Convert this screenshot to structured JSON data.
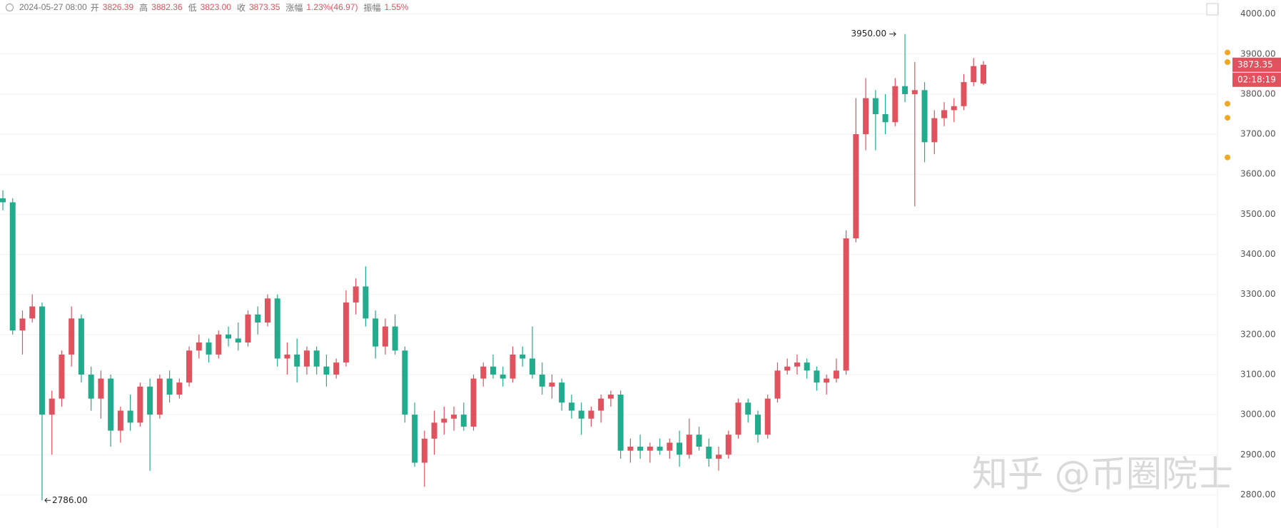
{
  "chart_data": {
    "type": "candlestick",
    "header": {
      "time": "2024-05-27 08:00",
      "items": [
        {
          "label": "开",
          "value": "3826.39"
        },
        {
          "label": "高",
          "value": "3882.36"
        },
        {
          "label": "低",
          "value": "3823.00"
        },
        {
          "label": "收",
          "value": "3873.35"
        },
        {
          "label": "涨幅",
          "value": "1.23%(46.97)"
        },
        {
          "label": "振幅",
          "value": "1.55%"
        }
      ]
    },
    "up_color": "#e0525d",
    "down_color": "#22ab8c",
    "ylim": [
      2717,
      4035
    ],
    "yticks": [
      {
        "value": 2800,
        "label": "2800.00"
      },
      {
        "value": 2900,
        "label": "2900.00"
      },
      {
        "value": 3000,
        "label": "3000.00"
      },
      {
        "value": 3100,
        "label": "3100.00"
      },
      {
        "value": 3200,
        "label": "3200.00"
      },
      {
        "value": 3300,
        "label": "3300.00"
      },
      {
        "value": 3400,
        "label": "3400.00"
      },
      {
        "value": 3500,
        "label": "3500.00"
      },
      {
        "value": 3600,
        "label": "3600.00"
      },
      {
        "value": 3700,
        "label": "3700.00"
      },
      {
        "value": 3800,
        "label": "3800.00"
      },
      {
        "value": 3900,
        "label": "3900.00"
      },
      {
        "value": 4000,
        "label": "4000.00"
      }
    ],
    "grid": true,
    "candles": [
      [
        3540,
        3560,
        3510,
        3530
      ],
      [
        3530,
        3540,
        3200,
        3210
      ],
      [
        3210,
        3260,
        3150,
        3240
      ],
      [
        3240,
        3300,
        3230,
        3270
      ],
      [
        3270,
        3280,
        2786,
        3000
      ],
      [
        3000,
        3060,
        2900,
        3040
      ],
      [
        3040,
        3160,
        3020,
        3150
      ],
      [
        3150,
        3270,
        3120,
        3240
      ],
      [
        3240,
        3250,
        3080,
        3100
      ],
      [
        3100,
        3120,
        3010,
        3040
      ],
      [
        3040,
        3110,
        2990,
        3090
      ],
      [
        3090,
        3100,
        2920,
        2960
      ],
      [
        2960,
        3020,
        2930,
        3010
      ],
      [
        3010,
        3050,
        2960,
        2980
      ],
      [
        2980,
        3080,
        2970,
        3070
      ],
      [
        3070,
        3090,
        2860,
        3000
      ],
      [
        3000,
        3100,
        2990,
        3090
      ],
      [
        3090,
        3110,
        3030,
        3050
      ],
      [
        3050,
        3090,
        3040,
        3080
      ],
      [
        3080,
        3170,
        3070,
        3160
      ],
      [
        3160,
        3200,
        3140,
        3180
      ],
      [
        3180,
        3190,
        3130,
        3150
      ],
      [
        3150,
        3210,
        3140,
        3200
      ],
      [
        3200,
        3220,
        3170,
        3190
      ],
      [
        3190,
        3230,
        3160,
        3180
      ],
      [
        3180,
        3260,
        3170,
        3250
      ],
      [
        3250,
        3270,
        3200,
        3230
      ],
      [
        3230,
        3300,
        3220,
        3290
      ],
      [
        3290,
        3300,
        3120,
        3140
      ],
      [
        3140,
        3180,
        3100,
        3150
      ],
      [
        3150,
        3190,
        3080,
        3120
      ],
      [
        3120,
        3170,
        3100,
        3160
      ],
      [
        3160,
        3170,
        3100,
        3120
      ],
      [
        3120,
        3150,
        3070,
        3100
      ],
      [
        3100,
        3140,
        3090,
        3130
      ],
      [
        3130,
        3310,
        3120,
        3280
      ],
      [
        3280,
        3340,
        3250,
        3320
      ],
      [
        3320,
        3370,
        3220,
        3240
      ],
      [
        3240,
        3260,
        3140,
        3170
      ],
      [
        3170,
        3240,
        3150,
        3220
      ],
      [
        3220,
        3250,
        3150,
        3160
      ],
      [
        3160,
        3170,
        2980,
        3000
      ],
      [
        3000,
        3030,
        2870,
        2880
      ],
      [
        2880,
        2960,
        2820,
        2940
      ],
      [
        2940,
        3010,
        2900,
        2980
      ],
      [
        2980,
        3020,
        2950,
        2990
      ],
      [
        2990,
        3020,
        2960,
        3000
      ],
      [
        3000,
        3030,
        2960,
        2970
      ],
      [
        2970,
        3100,
        2960,
        3090
      ],
      [
        3090,
        3130,
        3070,
        3120
      ],
      [
        3120,
        3150,
        3090,
        3100
      ],
      [
        3100,
        3120,
        3070,
        3090
      ],
      [
        3090,
        3170,
        3080,
        3150
      ],
      [
        3150,
        3170,
        3120,
        3140
      ],
      [
        3140,
        3220,
        3090,
        3100
      ],
      [
        3100,
        3130,
        3050,
        3070
      ],
      [
        3070,
        3100,
        3040,
        3080
      ],
      [
        3080,
        3090,
        3010,
        3030
      ],
      [
        3030,
        3050,
        2990,
        3010
      ],
      [
        3010,
        3030,
        2950,
        2990
      ],
      [
        2990,
        3020,
        2970,
        3010
      ],
      [
        3010,
        3050,
        2980,
        3040
      ],
      [
        3040,
        3060,
        3020,
        3050
      ],
      [
        3050,
        3060,
        2890,
        2910
      ],
      [
        2910,
        2940,
        2880,
        2920
      ],
      [
        2920,
        2950,
        2890,
        2910
      ],
      [
        2910,
        2930,
        2880,
        2920
      ],
      [
        2920,
        2940,
        2900,
        2910
      ],
      [
        2910,
        2940,
        2890,
        2930
      ],
      [
        2930,
        2960,
        2870,
        2900
      ],
      [
        2900,
        2990,
        2890,
        2950
      ],
      [
        2950,
        2970,
        2910,
        2920
      ],
      [
        2920,
        2940,
        2870,
        2890
      ],
      [
        2890,
        2920,
        2860,
        2900
      ],
      [
        2900,
        2960,
        2890,
        2950
      ],
      [
        2950,
        3040,
        2940,
        3030
      ],
      [
        3030,
        3040,
        2980,
        3000
      ],
      [
        3000,
        3010,
        2930,
        2950
      ],
      [
        2950,
        3050,
        2940,
        3040
      ],
      [
        3040,
        3130,
        3030,
        3110
      ],
      [
        3110,
        3140,
        3100,
        3120
      ],
      [
        3120,
        3150,
        3100,
        3130
      ],
      [
        3130,
        3140,
        3090,
        3110
      ],
      [
        3110,
        3120,
        3060,
        3080
      ],
      [
        3080,
        3100,
        3050,
        3090
      ],
      [
        3090,
        3140,
        3080,
        3110
      ],
      [
        3110,
        3460,
        3100,
        3440
      ],
      [
        3440,
        3790,
        3430,
        3700
      ],
      [
        3700,
        3840,
        3660,
        3790
      ],
      [
        3790,
        3810,
        3660,
        3750
      ],
      [
        3750,
        3800,
        3700,
        3730
      ],
      [
        3730,
        3840,
        3720,
        3820
      ],
      [
        3820,
        3950,
        3780,
        3800
      ],
      [
        3800,
        3880,
        3520,
        3810
      ],
      [
        3810,
        3830,
        3630,
        3680
      ],
      [
        3680,
        3760,
        3650,
        3740
      ],
      [
        3740,
        3780,
        3720,
        3760
      ],
      [
        3760,
        3790,
        3730,
        3770
      ],
      [
        3770,
        3850,
        3760,
        3830
      ],
      [
        3830,
        3890,
        3820,
        3870
      ],
      [
        3826.39,
        3882.36,
        3823.0,
        3873.35
      ]
    ],
    "max_annotation": {
      "value": 3950,
      "label": "3950.00",
      "index": 92
    },
    "min_annotation": {
      "value": 2786,
      "label": "2786.00",
      "index": 4
    },
    "last_price": 3873.35,
    "countdown": "02:18:19",
    "markers": {
      "color": "#f0a722",
      "values": [
        3904,
        3880,
        3776,
        3741,
        3642
      ]
    },
    "watermark": "知乎 @币圈院士"
  }
}
